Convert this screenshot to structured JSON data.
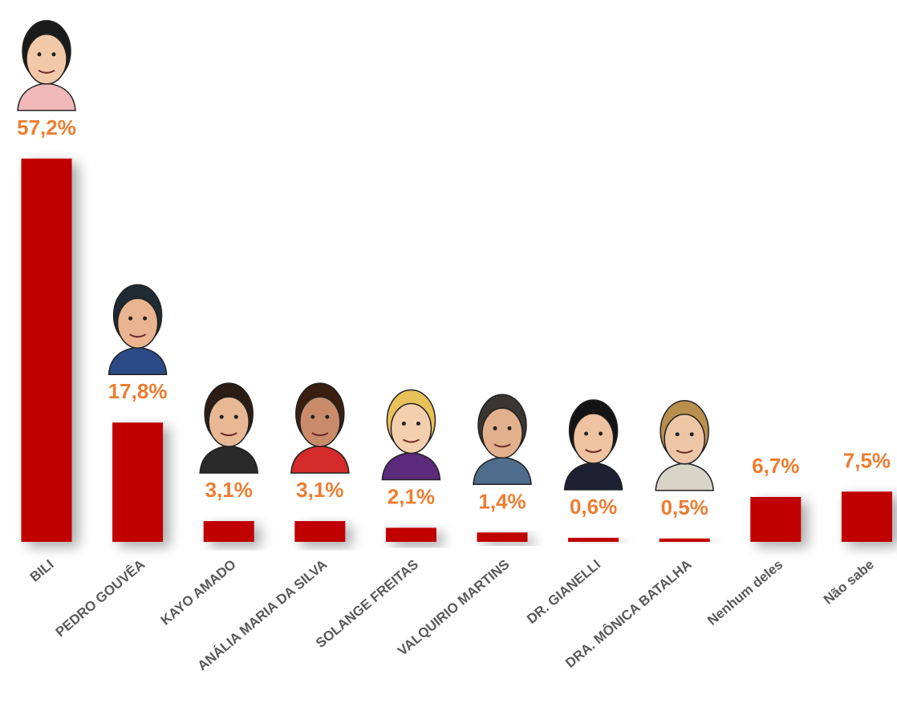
{
  "chart_data": {
    "type": "bar",
    "categories": [
      "BILI",
      "PEDRO GOUVÊA",
      "KAYO AMADO",
      "ANÁLIA MARIA DA SILVA",
      "SOLANGE FREITAS",
      "VALQUIRIO MARTINS",
      "DR. GIANELLI",
      "DRA. MÔNICA BATALHA",
      "Nenhum deles",
      "Não sabe"
    ],
    "values": [
      57.2,
      17.8,
      3.1,
      3.1,
      2.1,
      1.4,
      0.6,
      0.5,
      6.7,
      7.5
    ],
    "value_labels": [
      "57,2%",
      "17,8%",
      "3,1%",
      "3,1%",
      "2,1%",
      "1,4%",
      "0,6%",
      "0,5%",
      "6,7%",
      "7,5%"
    ],
    "color": "#C00000"
  }
}
